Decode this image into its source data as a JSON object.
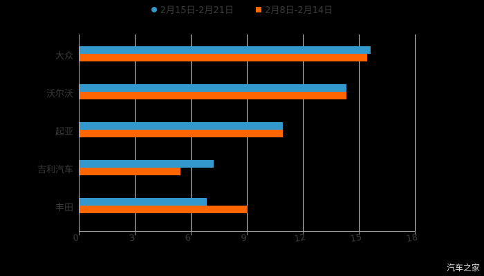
{
  "chart_data": {
    "type": "bar",
    "orientation": "horizontal",
    "title": "",
    "xlabel": "",
    "ylabel": "",
    "categories": [
      "大众",
      "沃尔沃",
      "起亚",
      "吉利汽车",
      "丰田"
    ],
    "series": [
      {
        "name": "2月15日-2月21日",
        "color": "#3399cc",
        "values": [
          15.6,
          14.3,
          10.9,
          7.2,
          6.8
        ]
      },
      {
        "name": "2月8日-2月14日",
        "color": "#ff6600",
        "values": [
          15.4,
          14.3,
          10.9,
          5.4,
          9.0
        ]
      }
    ],
    "xlim": [
      0,
      18
    ],
    "xticks": [
      "0",
      "3",
      "6",
      "9",
      "12",
      "15",
      "18"
    ],
    "grid": true,
    "legend_position": "top"
  },
  "legend": {
    "series1": "2月15日-2月21日",
    "series2": "2月8日-2月14日"
  },
  "watermark": "汽车之家"
}
